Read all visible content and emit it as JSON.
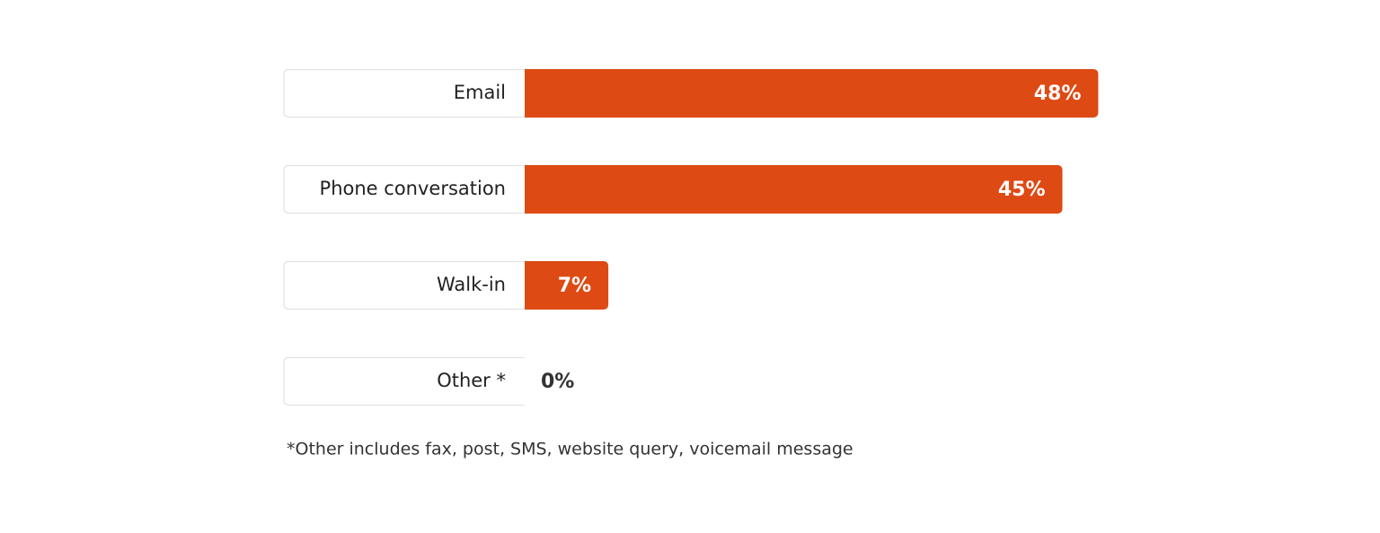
{
  "chart_data": {
    "type": "bar",
    "orientation": "horizontal",
    "categories": [
      "Email",
      "Phone conversation",
      "Walk-in",
      "Other *"
    ],
    "values": [
      48,
      45,
      7,
      0
    ],
    "value_labels": [
      "48%",
      "45%",
      "7%",
      "0%"
    ],
    "color": "#dd4a14",
    "note": "*Other includes fax, post, SMS, website query, voicemail message"
  }
}
